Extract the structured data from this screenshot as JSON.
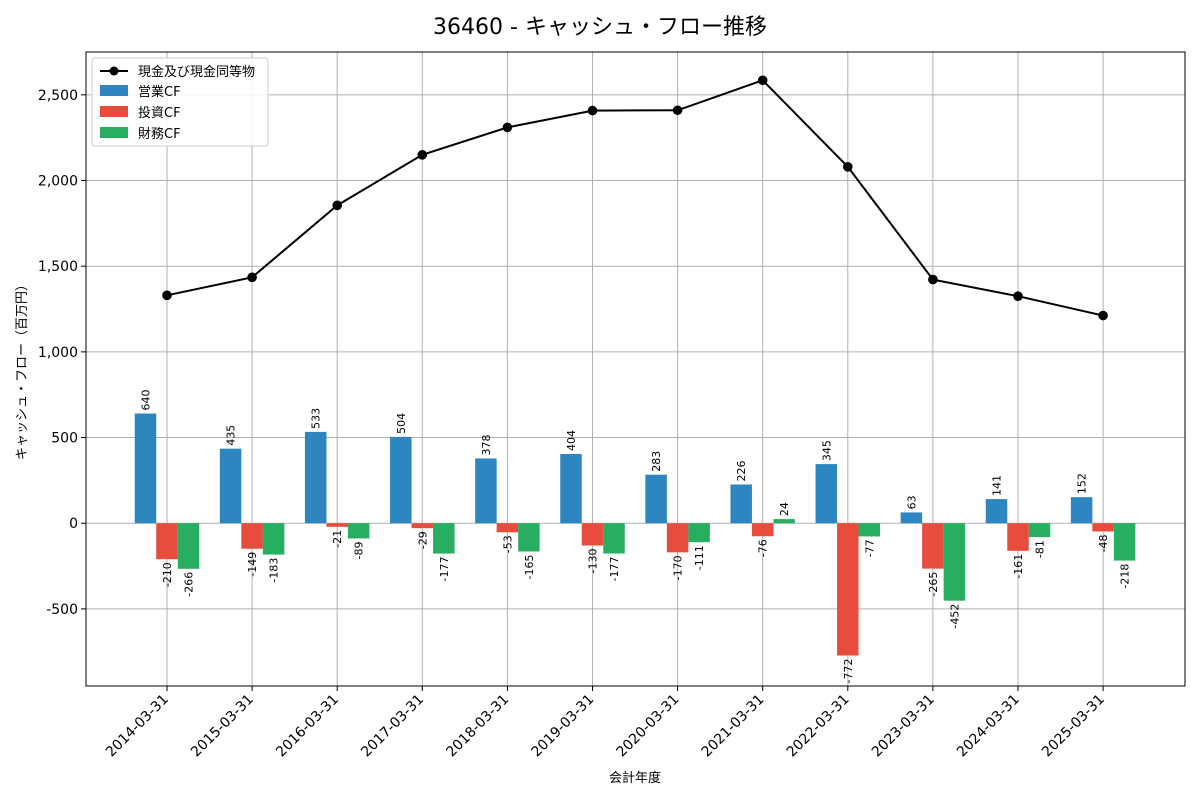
{
  "chart_data": {
    "type": "bar",
    "title": "36460 - キャッシュ・フロー推移",
    "xlabel": "会計年度",
    "ylabel": "キャッシュ・フロー（百万円）",
    "ylim": [
      -950,
      2750
    ],
    "yticks": [
      -500,
      0,
      500,
      1000,
      1500,
      2000,
      2500
    ],
    "ytick_labels": [
      "-500",
      "0",
      "500",
      "1,000",
      "1,500",
      "2,000",
      "2,500"
    ],
    "grid": true,
    "legend_position": "top-left",
    "categories": [
      "2014-03-31",
      "2015-03-31",
      "2016-03-31",
      "2017-03-31",
      "2018-03-31",
      "2019-03-31",
      "2020-03-31",
      "2021-03-31",
      "2022-03-31",
      "2023-03-31",
      "2024-03-31",
      "2025-03-31"
    ],
    "series": [
      {
        "name": "営業CF",
        "kind": "bar",
        "color": "#2e86c1",
        "values": [
          640,
          435,
          533,
          504,
          378,
          404,
          283,
          226,
          345,
          63,
          141,
          152
        ]
      },
      {
        "name": "投資CF",
        "kind": "bar",
        "color": "#e74c3c",
        "values": [
          -210,
          -149,
          -21,
          -29,
          -53,
          -130,
          -170,
          -76,
          -772,
          -265,
          -161,
          -48
        ]
      },
      {
        "name": "財務CF",
        "kind": "bar",
        "color": "#27ae60",
        "values": [
          -266,
          -183,
          -89,
          -177,
          -165,
          -177,
          -111,
          24,
          -77,
          -452,
          -81,
          -218
        ]
      }
    ],
    "line_series": {
      "name": "現金及び現金同等物",
      "kind": "line",
      "color": "#000000",
      "values": [
        1330,
        1435,
        1855,
        2150,
        2310,
        2408,
        2410,
        2585,
        2080,
        1422,
        1325,
        1212
      ]
    }
  }
}
